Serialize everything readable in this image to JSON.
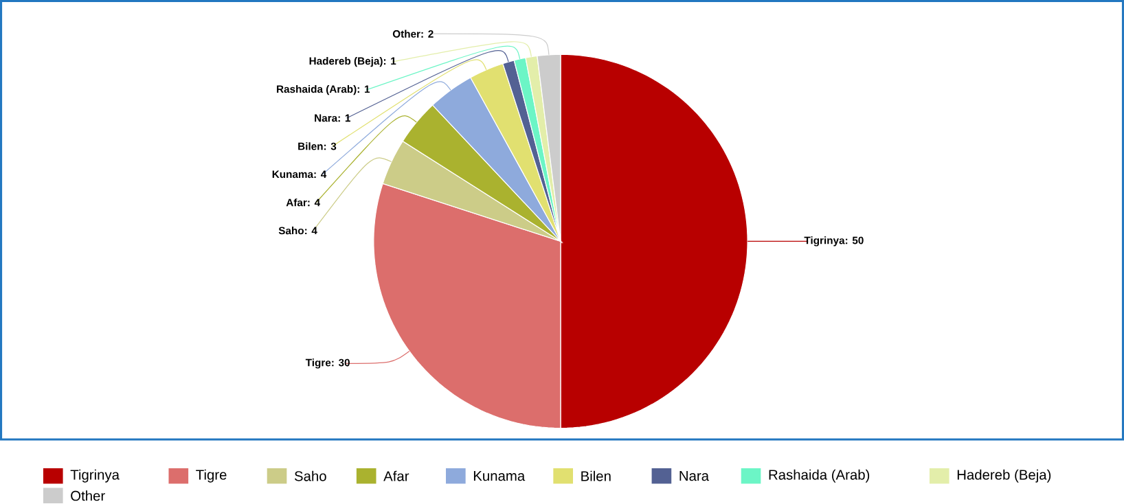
{
  "chart_data": {
    "type": "pie",
    "categories": [
      "Tigrinya",
      "Tigre",
      "Saho",
      "Afar",
      "Kunama",
      "Bilen",
      "Nara",
      "Rashaida (Arab)",
      "Hadereb (Beja)",
      "Other"
    ],
    "values": [
      50,
      30,
      4,
      4,
      4,
      3,
      1,
      1,
      1,
      2
    ],
    "colors": [
      "#b80000",
      "#dc6e6c",
      "#cccc88",
      "#aab22f",
      "#8eaadc",
      "#e1e070",
      "#536193",
      "#6cf5c6",
      "#e3eeaa",
      "#cccccc"
    ],
    "value_labels": [
      "Tigrinya: 50",
      "Tigre: 30",
      "Saho: 4",
      "Afar: 4",
      "Kunama: 4",
      "Bilen: 3",
      "Nara: 1",
      "Rashaida (Arab): 1",
      "Hadereb (Beja): 1",
      "Other: 2"
    ],
    "legend": "bottom"
  }
}
